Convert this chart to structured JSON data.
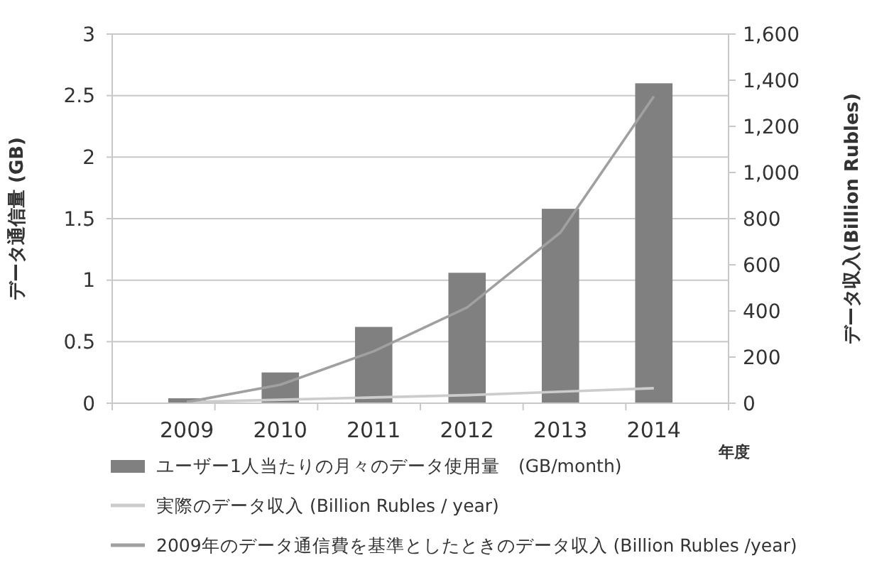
{
  "chart_data": {
    "type": "bar",
    "categories": [
      "2009",
      "2010",
      "2011",
      "2012",
      "2013",
      "2014"
    ],
    "xlabel": "年度",
    "ylabel": "データ通信量 (GB)",
    "y2label": "データ収入(Billion Rubles)",
    "ylim": [
      0,
      3
    ],
    "yticks": [
      0,
      0.5,
      1,
      1.5,
      2,
      2.5,
      3
    ],
    "y2lim": [
      0,
      1600
    ],
    "y2ticks": [
      0,
      {
        "value": 200,
        "label": "200"
      },
      {
        "value": 400,
        "label": "400"
      },
      {
        "value": 600,
        "label": "600"
      },
      {
        "value": 800,
        "label": "800"
      },
      {
        "value": 1000,
        "label": "1,000"
      },
      {
        "value": 1200,
        "label": "1,200"
      },
      {
        "value": 1400,
        "label": "1,400"
      },
      {
        "value": 1600,
        "label": "1,600"
      }
    ],
    "grid": "y",
    "legend": "bottom",
    "series": [
      {
        "name": "ユーザー1人当たりの月々のデータ使用量　(GB/month)",
        "color": "#808080",
        "values": [
          0.04,
          0.25,
          0.62,
          1.06,
          1.58,
          2.6
        ]
      },
      {
        "name": "実際のデータ収入 (Billion Rubles / year)",
        "type": "line",
        "axis": "y2",
        "color": "#cccccc",
        "values": [
          5,
          15,
          25,
          35,
          50,
          65
        ]
      },
      {
        "name": "2009年のデータ通信費を基準としたときのデータ収入 (Billion Rubles /year)",
        "type": "line",
        "axis": "y2",
        "color": "#a0a0a0",
        "values": [
          5,
          80,
          225,
          415,
          740,
          1330
        ]
      }
    ]
  }
}
